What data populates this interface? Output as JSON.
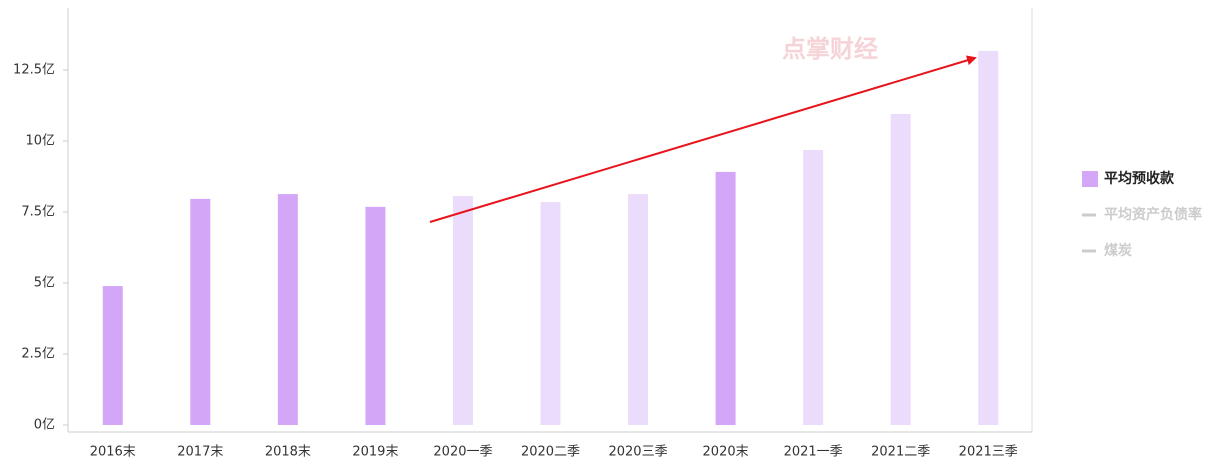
{
  "chart_data": {
    "type": "bar",
    "watermark": "点掌财经",
    "categories": [
      "2016末",
      "2017末",
      "2018末",
      "2019末",
      "2020一季",
      "2020二季",
      "2020三季",
      "2020末",
      "2021一季",
      "2021二季",
      "2021三季"
    ],
    "series": [
      {
        "name": "平均预收款",
        "color": "#d4a6f7",
        "bar_colors": [
          "#d4a6f7",
          "#d4a6f7",
          "#d4a6f7",
          "#d4a6f7",
          "#ecdcfc",
          "#ecdcfc",
          "#ecdcfc",
          "#d4a6f7",
          "#ecdcfc",
          "#ecdcfc",
          "#ecdcfc"
        ],
        "values": [
          4.89,
          7.96,
          8.13,
          7.68,
          8.06,
          7.85,
          8.13,
          8.91,
          9.68,
          10.95,
          13.17
        ]
      }
    ],
    "legend_inactive": [
      {
        "name": "平均资产负债率",
        "color": "#cccccc"
      },
      {
        "name": "煤炭",
        "color": "#cccccc"
      }
    ],
    "ylim": [
      0,
      14.68
    ],
    "yticks": [
      {
        "value": 0,
        "label": "0亿"
      },
      {
        "value": 2.5,
        "label": "2.5亿"
      },
      {
        "value": 5,
        "label": "5亿"
      },
      {
        "value": 7.5,
        "label": "7.5亿"
      },
      {
        "value": 10,
        "label": "10亿"
      },
      {
        "value": 12.5,
        "label": "12.5亿"
      }
    ],
    "grid": false
  }
}
